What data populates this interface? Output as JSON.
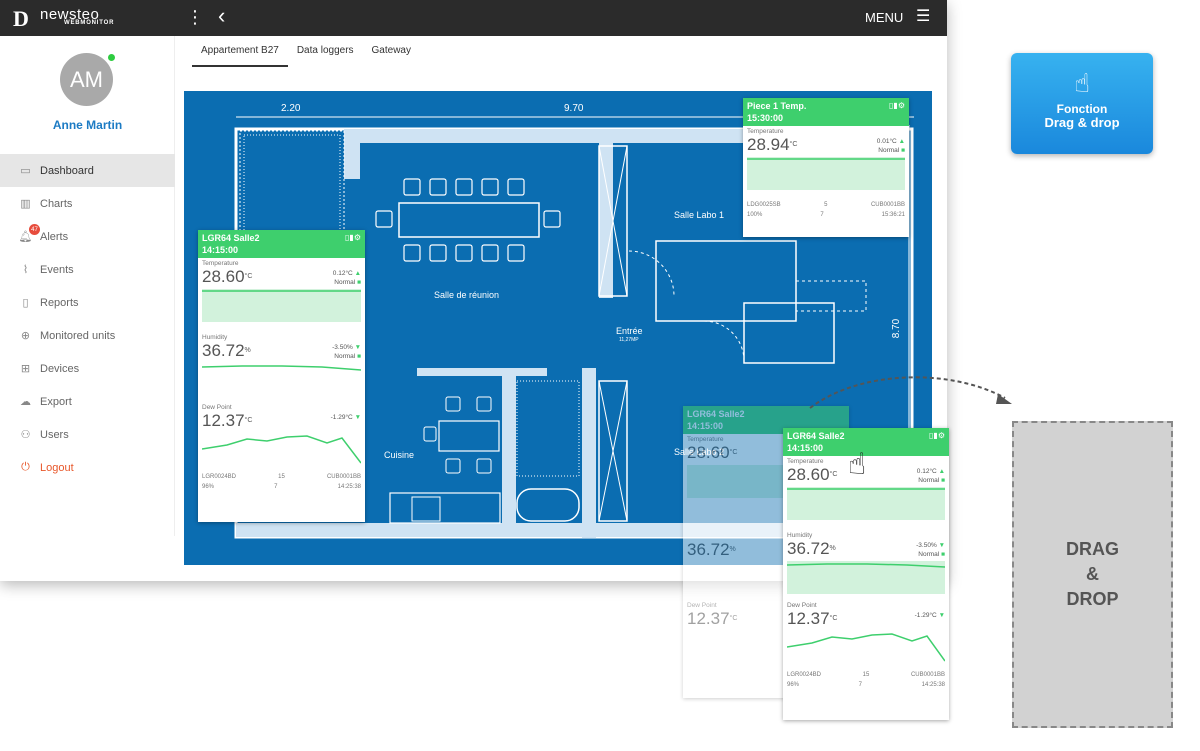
{
  "app": {
    "brand": "newsteo",
    "brand_sub": "WEBMONITOR",
    "menu_label": "MENU"
  },
  "user": {
    "initials": "AM",
    "name": "Anne Martin"
  },
  "sidebar": {
    "items": [
      {
        "label": "Dashboard",
        "icon": "monitor-icon",
        "glyph": "▭",
        "active": true
      },
      {
        "label": "Charts",
        "icon": "bar-chart-icon",
        "glyph": "▥"
      },
      {
        "label": "Alerts",
        "icon": "bell-icon",
        "glyph": "🔔︎",
        "badge": "47"
      },
      {
        "label": "Events",
        "icon": "paperclip-icon",
        "glyph": "⌇"
      },
      {
        "label": "Reports",
        "icon": "document-icon",
        "glyph": "▯"
      },
      {
        "label": "Monitored units",
        "icon": "crosshair-icon",
        "glyph": "⊕"
      },
      {
        "label": "Devices",
        "icon": "grid-icon",
        "glyph": "⊞"
      },
      {
        "label": "Export",
        "icon": "cloud-upload-icon",
        "glyph": "☁"
      },
      {
        "label": "Users",
        "icon": "user-icon",
        "glyph": "⚇"
      },
      {
        "label": "Logout",
        "icon": "power-icon",
        "glyph": "⏻"
      }
    ]
  },
  "tabs": [
    "Appartement B27",
    "Data loggers",
    "Gateway"
  ],
  "plan": {
    "dimensions": {
      "top_left": "2.20",
      "top_right": "9.70",
      "right": "8.70"
    },
    "rooms": {
      "reunion": "Salle de réunion",
      "entree": "Entrée",
      "entree_sub": "11,27MP",
      "labo1": "Salle Labo 1",
      "labo2": "Salle Labo 2",
      "cuisine": "Cuisine"
    }
  },
  "cards": {
    "salle2": {
      "title": "LGR64 Salle2",
      "time": "14:15:00",
      "metrics": [
        {
          "label": "Temperature",
          "value": "28.60",
          "unit": "°C",
          "delta": "0.12°C",
          "status": "Normal"
        },
        {
          "label": "Humidity",
          "value": "36.72",
          "unit": "%",
          "delta": "-3.50%",
          "status": "Normal"
        },
        {
          "label": "Dew Point",
          "value": "12.37",
          "unit": "°C",
          "delta": "-1.29°C",
          "status": ""
        }
      ],
      "footer": {
        "id": "LGR0024BD",
        "interval": "15",
        "gateway": "CUB0001BB",
        "battery": "96%",
        "lock": "7",
        "check_time": "14:25:38"
      }
    },
    "piece1": {
      "title": "Piece 1 Temp.",
      "time": "15:30:00",
      "metrics": [
        {
          "label": "Temperature",
          "value": "28.94",
          "unit": "°C",
          "delta": "0.01°C",
          "status": "Normal"
        }
      ],
      "footer": {
        "id": "LDG0025SB",
        "interval": "5",
        "gateway": "CUB0001BB",
        "battery": "100%",
        "lock": "7",
        "check_time": "15:36:21"
      }
    }
  },
  "drag_button": {
    "line1": "Fonction",
    "line2": "Drag & drop"
  },
  "dropzone": {
    "line1": "DRAG",
    "line2": "&",
    "line3": "DROP"
  }
}
